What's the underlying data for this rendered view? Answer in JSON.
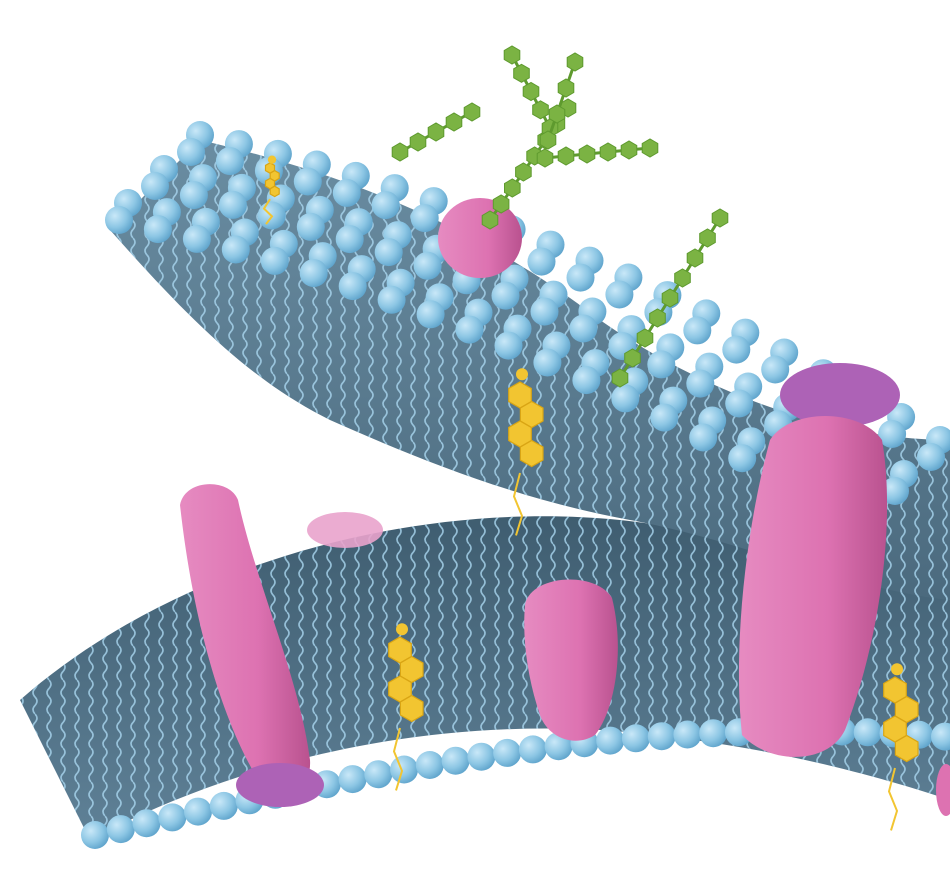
{
  "diagram": {
    "kind": "cell membrane lipid bilayer illustration",
    "labels": [],
    "colors": {
      "background": "#ffffff",
      "lipid_head": "#8cc6e4",
      "lipid_head_shade": "#5fa4cc",
      "bilayer_core": "#58788d",
      "bilayer_core_dark": "#3f5d70",
      "tail_stroke": "#a9d6ef",
      "protein_pink": "#dd72b1",
      "protein_pink_dark": "#b9528f",
      "protein_purple": "#ad62b6",
      "cholesterol": "#f2c531",
      "glycan": "#7bb343",
      "glycan_dark": "#5e9a2e"
    },
    "components": {
      "upper_bilayer_heads": 120,
      "lower_bilayer_heads": 34,
      "integral_proteins": 5,
      "peripheral_proteins": 3,
      "cholesterol_molecules": 4,
      "glycan_chains": 4
    }
  }
}
